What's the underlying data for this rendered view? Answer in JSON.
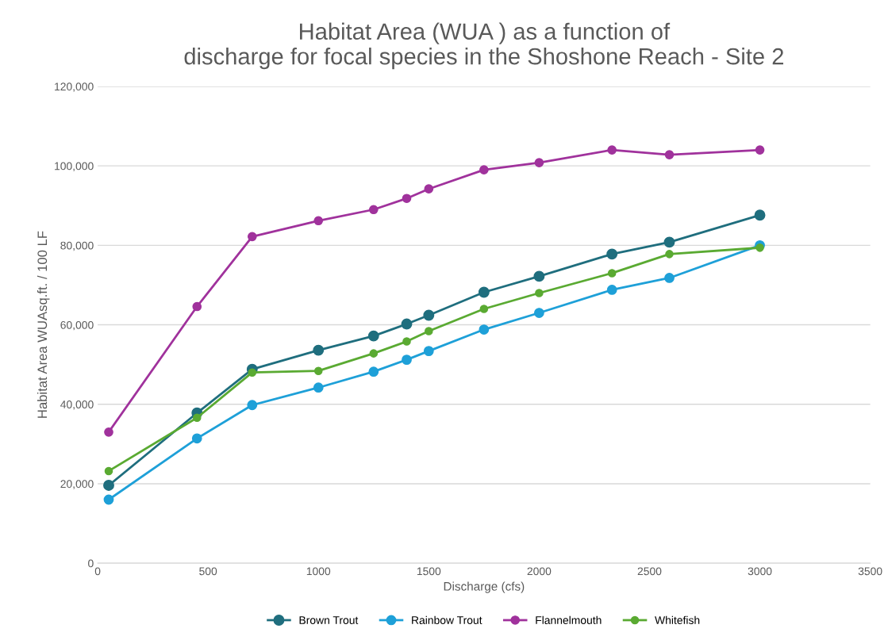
{
  "chart_data": {
    "type": "line",
    "title": "Habitat Area (WUA ) as a function of\ndischarge for focal species in the Shoshone Reach - Site 2",
    "xlabel": "Discharge (cfs)",
    "ylabel": "Habitat Area WUAsq.ft. / 100 LF",
    "x": [
      50,
      450,
      700,
      1000,
      1250,
      1400,
      1500,
      1750,
      2000,
      2330,
      2590,
      3000
    ],
    "series": [
      {
        "name": "Brown Trout",
        "color": "#1f6e7e",
        "values": [
          19600,
          37800,
          48800,
          53600,
          57200,
          60200,
          62400,
          68200,
          72200,
          77800,
          80800,
          87600
        ]
      },
      {
        "name": "Rainbow Trout",
        "color": "#1ea0d8",
        "values": [
          16000,
          31400,
          39800,
          44200,
          48200,
          51200,
          53400,
          58800,
          63000,
          68800,
          71800,
          80000
        ]
      },
      {
        "name": "Flannelmouth",
        "color": "#a0329c",
        "values": [
          33000,
          64600,
          82200,
          86200,
          89000,
          91800,
          94200,
          99000,
          100800,
          104000,
          102800,
          104000
        ]
      },
      {
        "name": "Whitefish",
        "color": "#5aaa32",
        "values": [
          23200,
          36600,
          48000,
          48400,
          52800,
          55800,
          58400,
          64000,
          68000,
          73000,
          77800,
          79400
        ]
      }
    ],
    "xlim": [
      0,
      3500
    ],
    "xticks": [
      0,
      500,
      1000,
      1500,
      2000,
      2500,
      3000,
      3500
    ],
    "ylim": [
      0,
      120000
    ],
    "yticks": [
      {
        "value": 0,
        "label": "0"
      },
      {
        "value": 20000,
        "label": "20,000"
      },
      {
        "value": 40000,
        "label": "40,000"
      },
      {
        "value": 60000,
        "label": "60,000"
      },
      {
        "value": 80000,
        "label": "80,000"
      },
      {
        "value": 100000,
        "label": "100,000"
      },
      {
        "value": 120000,
        "label": "120,000"
      }
    ],
    "grid": "y",
    "legend": "bottom",
    "marker": "circle",
    "line_style": "solid"
  }
}
